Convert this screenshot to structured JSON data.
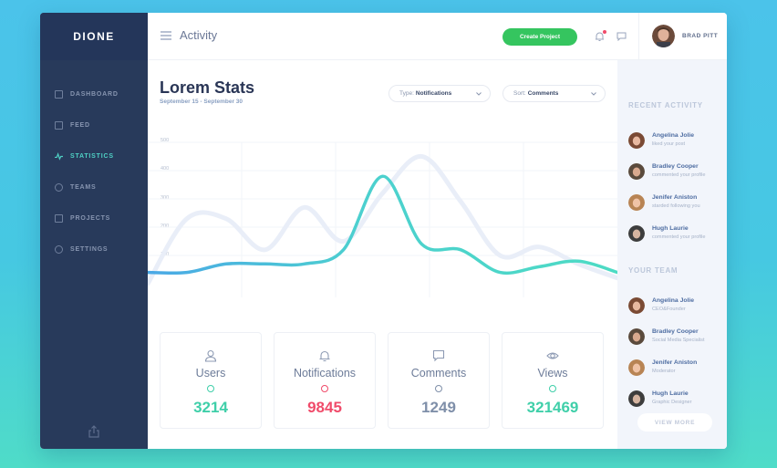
{
  "app": {
    "brand": "DIONE"
  },
  "sidebar": {
    "items": [
      {
        "label": "DASHBOARD",
        "icon": "document-icon"
      },
      {
        "label": "FEED",
        "icon": "copy-icon"
      },
      {
        "label": "STATISTICS",
        "icon": "pulse-icon",
        "active": true
      },
      {
        "label": "TEAMS",
        "icon": "user-icon"
      },
      {
        "label": "PROJECTS",
        "icon": "folder-icon"
      },
      {
        "label": "SETTINGS",
        "icon": "gear-icon"
      }
    ],
    "footer_icon": "share-icon"
  },
  "topbar": {
    "title": "Activity",
    "create_button": "Create Project",
    "user_name": "BRAD PITT"
  },
  "main": {
    "title": "Lorem Stats",
    "subtitle": "September 15 - September 30",
    "type_filter": {
      "key": "Type:",
      "value": "Notifications"
    },
    "sort_filter": {
      "key": "Sort:",
      "value": "Comments"
    }
  },
  "chart_data": {
    "type": "line",
    "y_ticks": [
      "500",
      "400",
      "300",
      "200",
      "100"
    ],
    "ylim": [
      0,
      500
    ],
    "grid": true,
    "x": [
      0,
      1,
      2,
      3,
      4,
      5,
      6,
      7,
      8,
      9,
      10,
      11,
      12
    ],
    "series": [
      {
        "color": "#e9eef8",
        "values": [
          0,
          230,
          230,
          120,
          270,
          150,
          320,
          450,
          290,
          100,
          130,
          70,
          20
        ]
      },
      {
        "color": "#4ddbc4",
        "values": [
          40,
          40,
          70,
          70,
          70,
          120,
          380,
          140,
          120,
          40,
          60,
          80,
          40
        ]
      }
    ]
  },
  "cards": [
    {
      "label": "Users",
      "value": "3214",
      "icon": "user-icon",
      "color": "#3fcfa9"
    },
    {
      "label": "Notifications",
      "value": "9845",
      "icon": "bell-icon",
      "color": "#f04b6a"
    },
    {
      "label": "Comments",
      "value": "1249",
      "icon": "comment-icon",
      "color": "#7f8fa9"
    },
    {
      "label": "Views",
      "value": "321469",
      "icon": "eye-icon",
      "color": "#3fcfa9"
    }
  ],
  "recent_activity": {
    "title": "RECENT ACTIVITY",
    "items": [
      {
        "name": "Angelina Jolie",
        "text": "liked your post"
      },
      {
        "name": "Bradley Cooper",
        "text": "commented your profile"
      },
      {
        "name": "Jenifer Aniston",
        "text": "starded following you"
      },
      {
        "name": "Hugh Laurie",
        "text": "commented your profile"
      }
    ]
  },
  "team": {
    "title": "YOUR TEAM",
    "members": [
      {
        "name": "Angelina Jolie",
        "role": "CEO&Founder"
      },
      {
        "name": "Bradley Cooper",
        "role": "Social Media Specialist"
      },
      {
        "name": "Jenifer Aniston",
        "role": "Moderator"
      },
      {
        "name": "Hugh Laurie",
        "role": "Graphic Designer"
      }
    ],
    "more_button": "VIEW MORE"
  }
}
